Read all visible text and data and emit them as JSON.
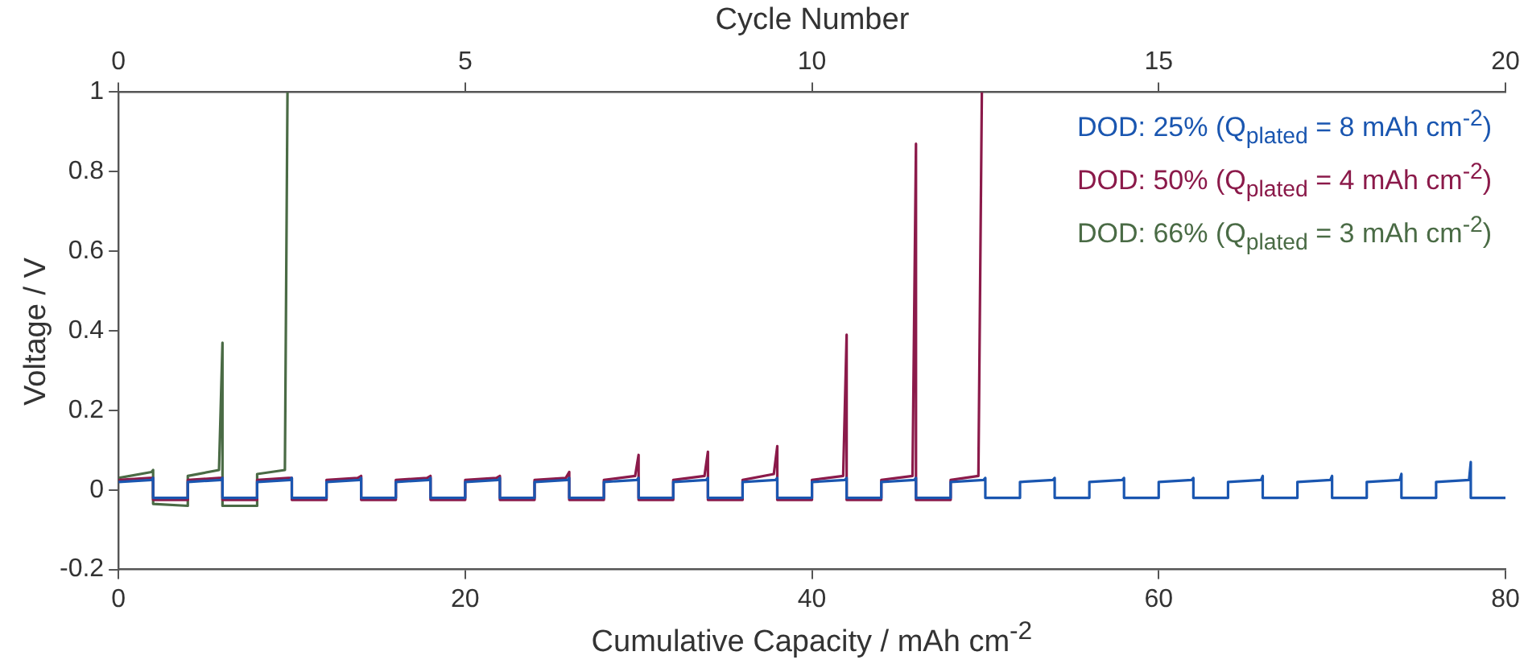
{
  "chart_data": {
    "type": "line",
    "xlabel": "Cumulative Capacity / mAh cm$^{-2}$",
    "ylabel": "Voltage / V",
    "x2label": "Cycle Number",
    "xlim": [
      0,
      80
    ],
    "xticks": [
      0,
      20,
      40,
      60,
      80
    ],
    "ylim": [
      -0.2,
      1
    ],
    "yticks": [
      -0.2,
      0,
      0.2,
      0.4,
      0.6,
      0.8,
      1
    ],
    "x2lim": [
      0,
      20
    ],
    "x2ticks": [
      0,
      5,
      10,
      15,
      20
    ],
    "grid": false,
    "legend": "top right",
    "marker": "none",
    "line_style": "solid",
    "series": [
      {
        "name": "DOD: 25% (Q$_{plated}$ =  8 mAh cm$^{-2}$)",
        "color": "#1a56b0",
        "x": [
          0,
          1.9,
          2,
          2,
          4,
          4,
          5.9,
          6,
          6,
          8,
          8,
          9.9,
          10,
          10,
          12,
          12,
          13.9,
          14,
          14,
          16,
          16,
          17.9,
          18,
          18,
          20,
          20,
          21.9,
          22,
          22,
          24,
          24,
          25.9,
          26,
          26,
          28,
          28,
          29.9,
          30,
          30,
          32,
          32,
          33.9,
          34,
          34,
          36,
          36,
          37.9,
          38,
          38,
          40,
          40,
          41.9,
          42,
          42,
          44,
          44,
          45.9,
          46,
          46,
          48,
          48,
          49.9,
          50,
          50,
          52,
          52,
          53.9,
          54,
          54,
          56,
          56,
          57.9,
          58,
          58,
          60,
          60,
          61.9,
          62,
          62,
          64,
          64,
          65.9,
          66,
          66,
          68,
          68,
          69.9,
          70,
          70,
          72,
          72,
          73.9,
          74,
          74,
          76,
          76,
          77.9,
          78,
          78,
          80
        ],
        "values": [
          0.02,
          0.025,
          0.03,
          -0.02,
          -0.02,
          0.02,
          0.025,
          0.03,
          -0.02,
          -0.02,
          0.02,
          0.025,
          0.03,
          -0.02,
          -0.02,
          0.02,
          0.025,
          0.03,
          -0.02,
          -0.02,
          0.02,
          0.025,
          0.03,
          -0.02,
          -0.02,
          0.02,
          0.025,
          0.03,
          -0.02,
          -0.02,
          0.02,
          0.025,
          0.03,
          -0.02,
          -0.02,
          0.02,
          0.025,
          0.03,
          -0.02,
          -0.02,
          0.02,
          0.025,
          0.03,
          -0.02,
          -0.02,
          0.02,
          0.025,
          0.03,
          -0.02,
          -0.02,
          0.02,
          0.025,
          0.03,
          -0.02,
          -0.02,
          0.02,
          0.025,
          0.03,
          -0.02,
          -0.02,
          0.02,
          0.025,
          0.03,
          -0.02,
          -0.02,
          0.02,
          0.025,
          0.03,
          -0.02,
          -0.02,
          0.02,
          0.025,
          0.03,
          -0.02,
          -0.02,
          0.02,
          0.025,
          0.03,
          -0.02,
          -0.02,
          0.02,
          0.025,
          0.035,
          -0.02,
          -0.02,
          0.02,
          0.025,
          0.035,
          -0.02,
          -0.02,
          0.02,
          0.025,
          0.04,
          -0.02,
          -0.02,
          0.02,
          0.025,
          0.07,
          -0.02,
          -0.02
        ]
      },
      {
        "name": "DOD: 50% (Q$_{plated}$ =  4 mAh cm$^{-2}$)",
        "color": "#8b1a4a",
        "x": [
          0,
          1.8,
          2,
          2,
          4,
          4,
          5.8,
          6,
          6,
          8,
          8,
          9.8,
          10,
          10,
          12,
          12,
          13.8,
          14,
          14,
          16,
          16,
          17.8,
          18,
          18,
          20,
          20,
          21.8,
          22,
          22,
          24,
          24,
          25.8,
          26,
          26,
          28,
          28,
          29.8,
          30,
          30,
          32,
          32,
          33.8,
          34,
          34,
          36,
          36,
          37.8,
          38,
          38,
          40,
          40,
          41.8,
          42,
          42,
          44,
          44,
          45.8,
          46,
          46,
          48,
          48,
          49.6,
          49.8
        ],
        "values": [
          0.025,
          0.03,
          0.03,
          -0.025,
          -0.025,
          0.025,
          0.03,
          0.03,
          -0.025,
          -0.025,
          0.025,
          0.03,
          0.03,
          -0.025,
          -0.025,
          0.025,
          0.03,
          0.035,
          -0.025,
          -0.025,
          0.025,
          0.03,
          0.035,
          -0.025,
          -0.025,
          0.025,
          0.03,
          0.035,
          -0.025,
          -0.025,
          0.025,
          0.03,
          0.045,
          -0.025,
          -0.025,
          0.025,
          0.035,
          0.088,
          -0.025,
          -0.025,
          0.025,
          0.035,
          0.096,
          -0.025,
          -0.025,
          0.025,
          0.04,
          0.11,
          -0.025,
          -0.025,
          0.025,
          0.035,
          0.39,
          -0.025,
          -0.025,
          0.025,
          0.035,
          0.87,
          -0.025,
          -0.025,
          0.025,
          0.035,
          1
        ]
      },
      {
        "name": "DOD: 66% (Q$_{plated}$ =  3 mAh cm$^{-2}$)",
        "color": "#4a6b45",
        "x": [
          0,
          1.9,
          2,
          2,
          4,
          4,
          5.8,
          6,
          6,
          8,
          8,
          9.6,
          9.75
        ],
        "values": [
          0.03,
          0.045,
          0.05,
          -0.035,
          -0.04,
          0.035,
          0.05,
          0.37,
          -0.04,
          -0.04,
          0.04,
          0.05,
          1
        ]
      }
    ]
  }
}
